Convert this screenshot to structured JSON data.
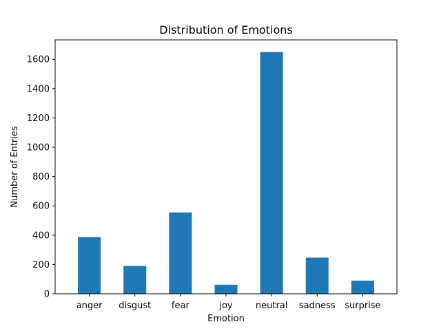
{
  "chart_data": {
    "type": "bar",
    "title": "Distribution of Emotions",
    "xlabel": "Emotion",
    "ylabel": "Number of Entries",
    "categories": [
      "anger",
      "disgust",
      "fear",
      "joy",
      "neutral",
      "sadness",
      "surprise"
    ],
    "values": [
      387,
      190,
      555,
      62,
      1650,
      247,
      90
    ],
    "ylim": [
      0,
      1732.5
    ],
    "yticks": [
      0,
      200,
      400,
      600,
      800,
      1000,
      1200,
      1400,
      1600
    ],
    "grid": false,
    "legend": "none",
    "bar_color": "#1f77b4"
  }
}
